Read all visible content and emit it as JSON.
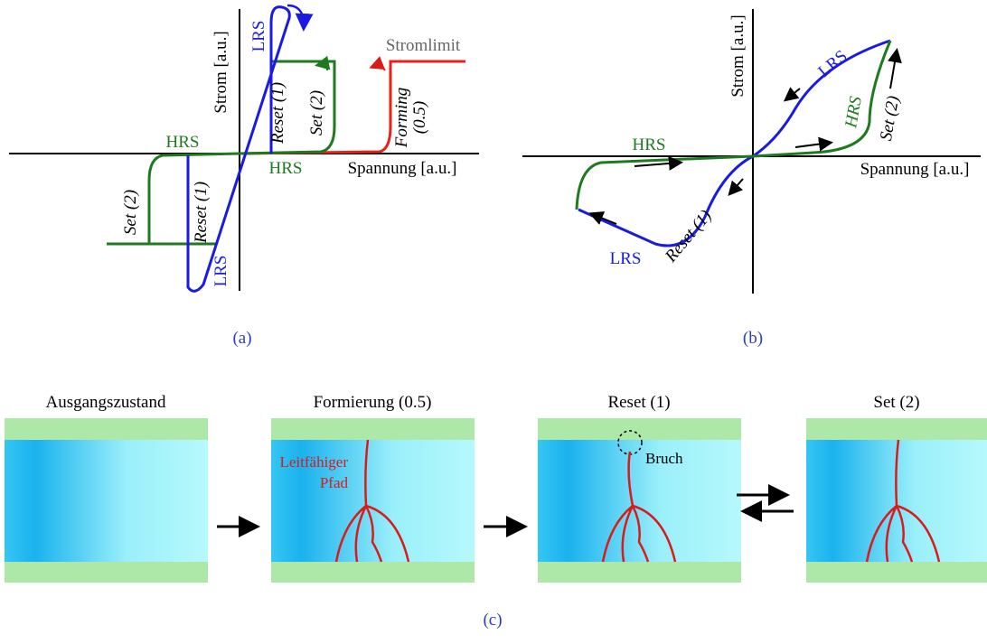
{
  "panel_a": {
    "label": "(a)",
    "axis_x": "Spannung [a.u.]",
    "axis_y": "Strom [a.u.]",
    "current_limit": "Stromlimit",
    "lrs_top": "LRS",
    "reset_top": "Reset (1)",
    "set_top": "Set (2)",
    "forming": "Forming",
    "forming_step": "(0.5)",
    "hrs_left": "HRS",
    "hrs_bottom": "HRS",
    "set_bottom": "Set (2)",
    "reset_bottom": "Reset (1)",
    "lrs_bottom": "LRS"
  },
  "panel_b": {
    "label": "(b)",
    "axis_x": "Spannung [a.u.]",
    "axis_y": "Strom [a.u.]",
    "lrs_top": "LRS",
    "hrs_right": "HRS",
    "set_right": "Set (2)",
    "hrs_left": "HRS",
    "lrs_bottom": "LRS",
    "reset_bottom": "Reset (1)"
  },
  "panel_c": {
    "label": "(c)",
    "stages": [
      "Ausgangszustand",
      "Formierung (0.5)",
      "Reset (1)",
      "Set (2)"
    ],
    "path_label_1": "Leitfähiger",
    "path_label_2": "Pfad",
    "break_label": "Bruch"
  }
}
